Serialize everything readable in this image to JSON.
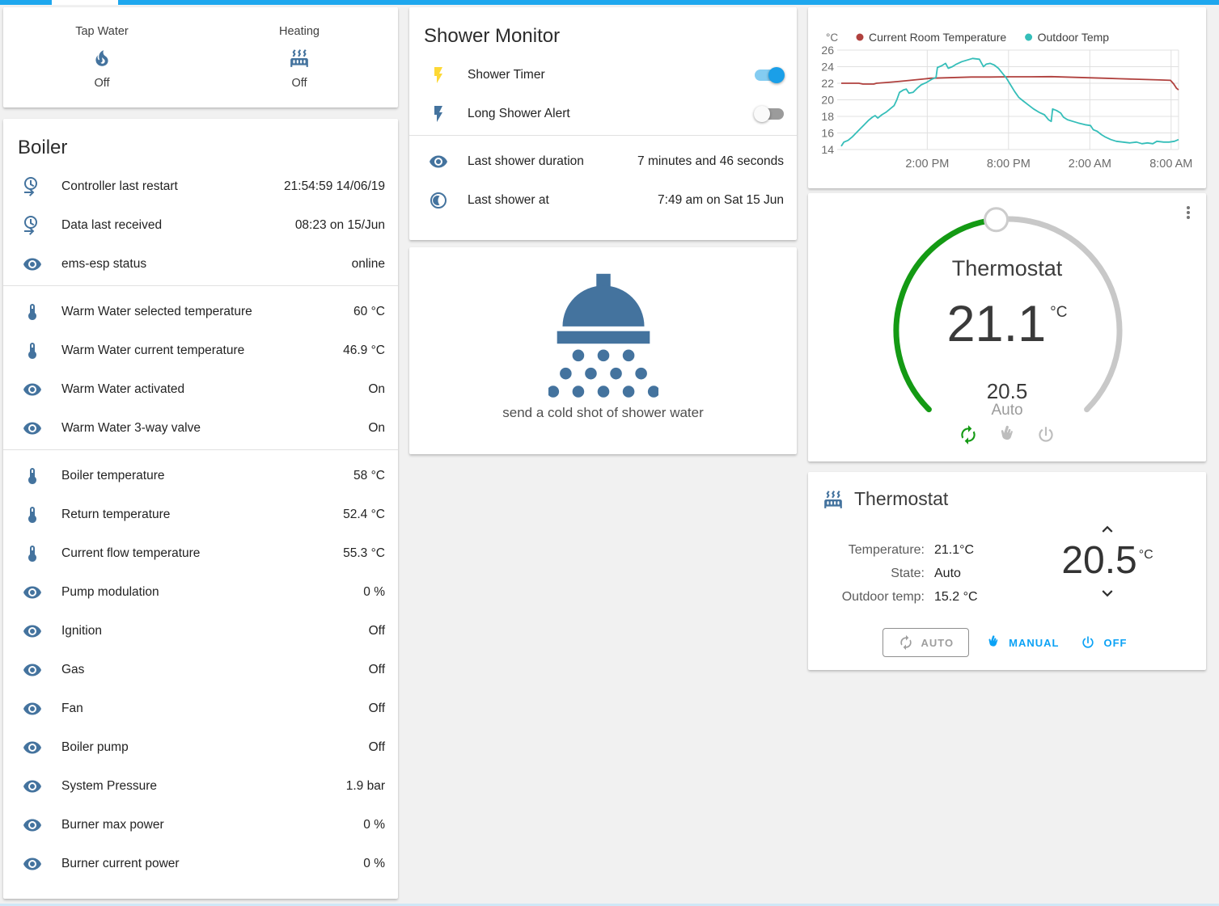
{
  "header": {
    "bar_color": "#1ea7ee",
    "active_tab_indicator_color": "#ffffff"
  },
  "colors": {
    "icon_blue": "#44739e",
    "accent_blue": "#0ba2f5",
    "toggle_on": "#1a9fe8",
    "bolt_yellow": "#fdd835",
    "dial_green": "#149a14",
    "dial_grey": "#c8c8c8",
    "room_line": "#b0413e",
    "outdoor_line": "#35beb9"
  },
  "glance": {
    "items": [
      {
        "label": "Tap Water",
        "icon": "fire-icon",
        "state": "Off"
      },
      {
        "label": "Heating",
        "icon": "radiator-icon",
        "state": "Off"
      }
    ]
  },
  "boiler": {
    "title": "Boiler",
    "rows": [
      {
        "icon": "clock-start-icon",
        "label": "Controller last restart",
        "value": "21:54:59 14/06/19"
      },
      {
        "icon": "clock-start-icon",
        "label": "Data last received",
        "value": "08:23 on 15/Jun"
      },
      {
        "icon": "eye-icon",
        "label": "ems-esp status",
        "value": "online",
        "divider_after": true
      },
      {
        "icon": "thermometer-icon",
        "label": "Warm Water selected temperature",
        "value": "60 °C"
      },
      {
        "icon": "thermometer-icon",
        "label": "Warm Water current temperature",
        "value": "46.9 °C"
      },
      {
        "icon": "eye-icon",
        "label": "Warm Water activated",
        "value": "On"
      },
      {
        "icon": "eye-icon",
        "label": "Warm Water 3-way valve",
        "value": "On",
        "divider_after": true
      },
      {
        "icon": "thermometer-icon",
        "label": "Boiler temperature",
        "value": "58 °C"
      },
      {
        "icon": "thermometer-icon",
        "label": "Return temperature",
        "value": "52.4 °C"
      },
      {
        "icon": "thermometer-icon",
        "label": "Current flow temperature",
        "value": "55.3 °C"
      },
      {
        "icon": "eye-icon",
        "label": "Pump modulation",
        "value": "0 %"
      },
      {
        "icon": "eye-icon",
        "label": "Ignition",
        "value": "Off"
      },
      {
        "icon": "eye-icon",
        "label": "Gas",
        "value": "Off"
      },
      {
        "icon": "eye-icon",
        "label": "Fan",
        "value": "Off"
      },
      {
        "icon": "eye-icon",
        "label": "Boiler pump",
        "value": "Off"
      },
      {
        "icon": "eye-icon",
        "label": "System Pressure",
        "value": "1.9 bar"
      },
      {
        "icon": "eye-icon",
        "label": "Burner max power",
        "value": "0 %"
      },
      {
        "icon": "eye-icon",
        "label": "Burner current power",
        "value": "0 %"
      }
    ]
  },
  "shower_monitor": {
    "title": "Shower Monitor",
    "toggles": [
      {
        "icon": "flash-icon",
        "icon_color": "#fdd835",
        "label": "Shower Timer",
        "state": "on"
      },
      {
        "icon": "flash-icon",
        "icon_color": "#44739e",
        "label": "Long Shower Alert",
        "state": "off"
      }
    ],
    "rows": [
      {
        "icon": "eye-icon",
        "label": "Last shower duration",
        "value": "7 minutes and 46 seconds"
      },
      {
        "icon": "clock-icon",
        "label": "Last shower at",
        "value": "7:49 am on Sat 15 Jun"
      }
    ]
  },
  "shower_action": {
    "icon": "shower-head-icon",
    "label": "send a cold shot of shower water"
  },
  "chart_data": {
    "type": "line",
    "ylabel": "°C",
    "ylim": [
      14,
      26
    ],
    "yticks": [
      14,
      16,
      18,
      20,
      22,
      24,
      26
    ],
    "xlim": [
      0,
      24.9
    ],
    "xticks": [
      {
        "x": 6.35,
        "label": "2:00 PM"
      },
      {
        "x": 12.35,
        "label": "8:00 PM"
      },
      {
        "x": 18.35,
        "label": "2:00 AM"
      },
      {
        "x": 24.35,
        "label": "8:00 AM"
      }
    ],
    "grid": true,
    "legend_position": "top",
    "series": [
      {
        "name": "Current Room Temperature",
        "color": "#b0413e",
        "points": [
          [
            0,
            22.0
          ],
          [
            1.3,
            22.0
          ],
          [
            1.6,
            21.9
          ],
          [
            2.4,
            21.9
          ],
          [
            2.6,
            22.0
          ],
          [
            3.4,
            22.1
          ],
          [
            4.1,
            22.2
          ],
          [
            4.8,
            22.3
          ],
          [
            5.4,
            22.4
          ],
          [
            6.0,
            22.5
          ],
          [
            6.6,
            22.6
          ],
          [
            7.6,
            22.65
          ],
          [
            8.6,
            22.7
          ],
          [
            9.6,
            22.75
          ],
          [
            11.0,
            22.75
          ],
          [
            12.5,
            22.78
          ],
          [
            14.0,
            22.78
          ],
          [
            15.5,
            22.8
          ],
          [
            16.5,
            22.75
          ],
          [
            17.5,
            22.7
          ],
          [
            18.5,
            22.65
          ],
          [
            19.5,
            22.6
          ],
          [
            20.5,
            22.55
          ],
          [
            21.5,
            22.5
          ],
          [
            22.5,
            22.45
          ],
          [
            23.5,
            22.4
          ],
          [
            24.3,
            22.35
          ],
          [
            24.55,
            21.9
          ],
          [
            24.75,
            21.4
          ],
          [
            24.9,
            21.2
          ]
        ]
      },
      {
        "name": "Outdoor Temp",
        "color": "#35beb9",
        "points": [
          [
            0,
            14.4
          ],
          [
            0.2,
            14.9
          ],
          [
            0.5,
            15.1
          ],
          [
            0.8,
            15.5
          ],
          [
            1.1,
            16.0
          ],
          [
            1.4,
            16.5
          ],
          [
            1.7,
            17.0
          ],
          [
            2.0,
            17.5
          ],
          [
            2.3,
            17.9
          ],
          [
            2.5,
            18.1
          ],
          [
            2.7,
            17.8
          ],
          [
            3.0,
            18.2
          ],
          [
            3.3,
            18.5
          ],
          [
            3.6,
            18.9
          ],
          [
            3.9,
            19.3
          ],
          [
            4.1,
            20.0
          ],
          [
            4.3,
            20.9
          ],
          [
            4.6,
            21.2
          ],
          [
            4.8,
            21.3
          ],
          [
            5.0,
            20.8
          ],
          [
            5.3,
            20.9
          ],
          [
            5.6,
            21.4
          ],
          [
            5.9,
            21.8
          ],
          [
            6.3,
            22.1
          ],
          [
            6.7,
            22.5
          ],
          [
            7.0,
            22.7
          ],
          [
            7.1,
            23.9
          ],
          [
            7.4,
            24.1
          ],
          [
            7.7,
            24.4
          ],
          [
            7.9,
            23.8
          ],
          [
            8.2,
            24.0
          ],
          [
            8.5,
            24.3
          ],
          [
            8.9,
            24.6
          ],
          [
            9.3,
            24.8
          ],
          [
            9.7,
            25.0
          ],
          [
            10.2,
            24.9
          ],
          [
            10.5,
            24.0
          ],
          [
            10.7,
            24.3
          ],
          [
            11.0,
            24.4
          ],
          [
            11.3,
            24.2
          ],
          [
            11.6,
            23.8
          ],
          [
            11.9,
            23.2
          ],
          [
            12.2,
            22.6
          ],
          [
            12.5,
            21.8
          ],
          [
            12.8,
            21.0
          ],
          [
            13.1,
            20.3
          ],
          [
            13.4,
            19.9
          ],
          [
            13.8,
            19.4
          ],
          [
            14.2,
            18.9
          ],
          [
            14.6,
            18.5
          ],
          [
            15.0,
            18.2
          ],
          [
            15.3,
            17.6
          ],
          [
            15.5,
            17.4
          ],
          [
            15.6,
            18.9
          ],
          [
            15.9,
            18.7
          ],
          [
            16.2,
            18.4
          ],
          [
            16.4,
            17.9
          ],
          [
            16.7,
            17.6
          ],
          [
            17.1,
            17.4
          ],
          [
            17.5,
            17.2
          ],
          [
            18.0,
            17.0
          ],
          [
            18.4,
            16.9
          ],
          [
            18.6,
            16.4
          ],
          [
            18.9,
            16.2
          ],
          [
            19.2,
            15.8
          ],
          [
            19.5,
            15.5
          ],
          [
            19.9,
            15.2
          ],
          [
            20.3,
            15.0
          ],
          [
            20.8,
            14.9
          ],
          [
            21.3,
            14.8
          ],
          [
            21.8,
            14.9
          ],
          [
            22.2,
            14.7
          ],
          [
            22.6,
            14.8
          ],
          [
            23.0,
            14.7
          ],
          [
            23.3,
            15.0
          ],
          [
            23.8,
            14.9
          ],
          [
            24.2,
            14.9
          ],
          [
            24.6,
            15.0
          ],
          [
            24.9,
            15.2
          ]
        ]
      }
    ]
  },
  "dial": {
    "title": "Thermostat",
    "current_temperature": "21.1",
    "unit": "°C",
    "target_temperature": "20.5",
    "mode": "Auto"
  },
  "thermostat_card": {
    "title": "Thermostat",
    "rows": [
      {
        "label": "Temperature:",
        "value": "21.1°C"
      },
      {
        "label": "State:",
        "value": "Auto"
      },
      {
        "label": "Outdoor temp:",
        "value": "15.2 °C"
      }
    ],
    "setpoint": "20.5",
    "unit": "°C",
    "buttons": [
      {
        "icon": "autorenew-icon",
        "label": "AUTO",
        "style": "outlined"
      },
      {
        "icon": "hand-icon",
        "label": "MANUAL",
        "style": "plain"
      },
      {
        "icon": "power-icon",
        "label": "OFF",
        "style": "plain"
      }
    ]
  }
}
